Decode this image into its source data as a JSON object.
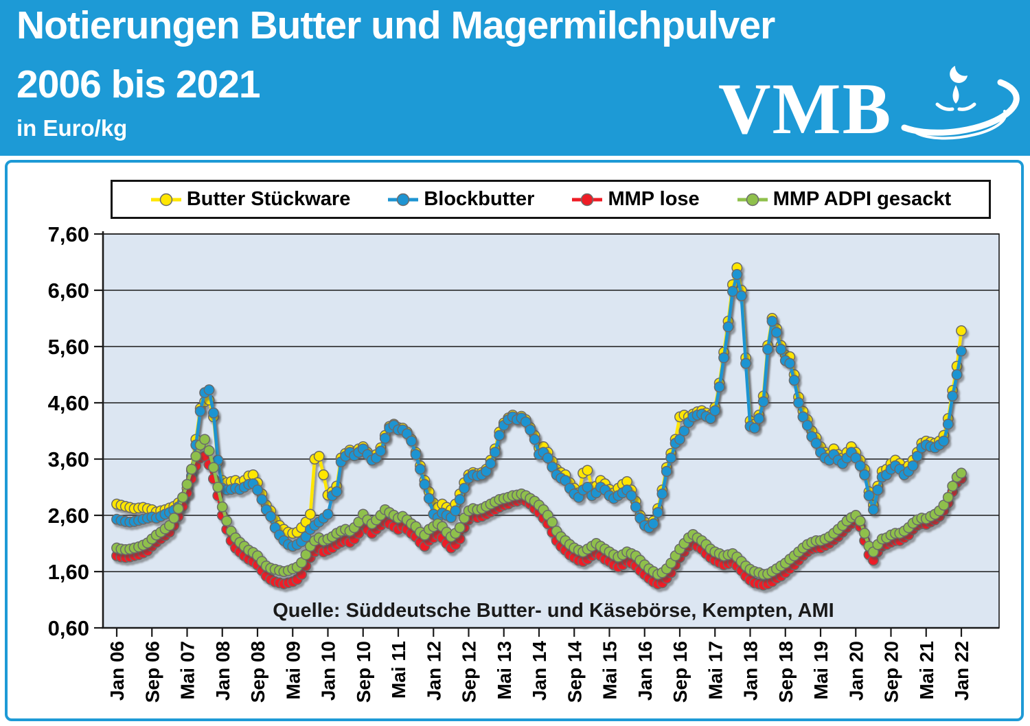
{
  "header": {
    "title_line1": "Notierungen Butter und Magermilchpulver",
    "title_line2": "2006 bis 2021",
    "subtitle": "in Euro/kg",
    "logo_text": "VMB",
    "banner_color": "#1d9ad6"
  },
  "chart_data": {
    "type": "line",
    "title": "Notierungen Butter und Magermilchpulver 2006 bis 2021 in Euro/kg",
    "ylabel": "Euro/kg",
    "ylim": [
      0.6,
      7.6
    ],
    "ytick_step": 1.0,
    "ytick_labels": [
      "7,60",
      "6,60",
      "5,60",
      "4,60",
      "3,60",
      "2,60",
      "1,60",
      "0,60"
    ],
    "x_start": "Jan 2006",
    "x_end": "Jan 2022",
    "x_interval": "monthly",
    "xtick_every_months": 8,
    "xtick_labels": [
      "Jan 06",
      "Sep 06",
      "Mai 07",
      "Jan 08",
      "Sep 08",
      "Mai 09",
      "Jan 10",
      "Sep 10",
      "Mai 11",
      "Jan 12",
      "Sep 12",
      "Mai 13",
      "Jan 14",
      "Sep 14",
      "Mai 15",
      "Jan 16",
      "Sep 16",
      "Mai 17",
      "Jan 18",
      "Sep 18",
      "Mai 19",
      "Jan 20",
      "Sep 20",
      "Mai 21",
      "Jan 22"
    ],
    "grid": true,
    "legend_position": "top",
    "plot_bg": "#dce6f2",
    "axis_color": "#1a1a1a",
    "marker_outline": "#6b6b6b",
    "source_note": "Quelle: Süddeutsche Butter- und Käsebörse, Kempten, AMI",
    "series": [
      {
        "name": "Butter Stückware",
        "color": "#ffe600",
        "values": [
          2.8,
          2.78,
          2.76,
          2.74,
          2.72,
          2.73,
          2.74,
          2.72,
          2.7,
          2.66,
          2.68,
          2.7,
          2.73,
          2.76,
          2.82,
          2.92,
          3.08,
          3.4,
          3.95,
          4.5,
          4.62,
          4.65,
          4.35,
          3.55,
          3.22,
          3.18,
          3.2,
          3.22,
          3.18,
          3.22,
          3.3,
          3.32,
          3.18,
          2.98,
          2.78,
          2.68,
          2.52,
          2.42,
          2.35,
          2.3,
          2.28,
          2.3,
          2.38,
          2.48,
          2.62,
          3.6,
          3.65,
          3.32,
          2.96,
          3.02,
          3.12,
          3.62,
          3.7,
          3.76,
          3.72,
          3.78,
          3.82,
          3.72,
          3.63,
          3.68,
          3.8,
          4.02,
          4.18,
          4.22,
          4.16,
          4.15,
          4.08,
          3.95,
          3.72,
          3.48,
          3.22,
          3.02,
          2.82,
          2.74,
          2.8,
          2.74,
          2.7,
          2.8,
          2.98,
          3.18,
          3.32,
          3.36,
          3.34,
          3.36,
          3.42,
          3.58,
          3.78,
          4.08,
          4.24,
          4.33,
          4.38,
          4.33,
          4.36,
          4.3,
          4.16,
          4.02,
          3.8,
          3.82,
          3.72,
          3.56,
          3.42,
          3.36,
          3.32,
          3.18,
          3.08,
          3.0,
          3.35,
          3.4,
          3.1,
          3.12,
          3.22,
          3.16,
          3.06,
          3.0,
          3.08,
          3.15,
          3.2,
          3.05,
          2.85,
          2.6,
          2.48,
          2.42,
          2.5,
          2.72,
          3.05,
          3.45,
          3.7,
          3.95,
          4.35,
          4.38,
          4.35,
          4.4,
          4.44,
          4.46,
          4.42,
          4.38,
          4.52,
          4.95,
          5.5,
          6.05,
          6.7,
          7.0,
          6.6,
          5.4,
          4.28,
          4.22,
          4.38,
          4.72,
          5.62,
          6.1,
          5.92,
          5.62,
          5.45,
          5.42,
          5.1,
          4.7,
          4.45,
          4.3,
          4.1,
          3.98,
          3.82,
          3.72,
          3.68,
          3.78,
          3.68,
          3.62,
          3.72,
          3.82,
          3.72,
          3.58,
          3.42,
          3.02,
          2.78,
          3.12,
          3.38,
          3.42,
          3.52,
          3.58,
          3.52,
          3.42,
          3.48,
          3.58,
          3.72,
          3.88,
          3.92,
          3.9,
          3.88,
          3.92,
          4.02,
          4.32,
          4.82,
          5.25,
          5.88
        ]
      },
      {
        "name": "Blockbutter",
        "color": "#1e94d2",
        "values": [
          2.53,
          2.51,
          2.49,
          2.48,
          2.49,
          2.51,
          2.53,
          2.55,
          2.57,
          2.55,
          2.58,
          2.62,
          2.65,
          2.69,
          2.75,
          2.85,
          3.0,
          3.3,
          3.85,
          4.45,
          4.78,
          4.83,
          4.42,
          3.58,
          3.08,
          3.05,
          3.06,
          3.08,
          3.06,
          3.1,
          3.15,
          3.16,
          3.05,
          2.88,
          2.7,
          2.58,
          2.38,
          2.25,
          2.15,
          2.08,
          2.05,
          2.08,
          2.13,
          2.22,
          2.35,
          2.42,
          2.48,
          2.55,
          2.62,
          2.95,
          3.02,
          3.55,
          3.65,
          3.72,
          3.66,
          3.72,
          3.78,
          3.68,
          3.58,
          3.62,
          3.74,
          3.97,
          4.15,
          4.2,
          4.12,
          4.12,
          4.05,
          3.92,
          3.68,
          3.42,
          3.15,
          2.9,
          2.62,
          2.56,
          2.64,
          2.6,
          2.56,
          2.68,
          2.88,
          3.08,
          3.26,
          3.32,
          3.3,
          3.32,
          3.38,
          3.52,
          3.72,
          4.02,
          4.2,
          4.3,
          4.35,
          4.3,
          4.33,
          4.26,
          4.12,
          3.95,
          3.68,
          3.72,
          3.62,
          3.46,
          3.32,
          3.26,
          3.22,
          3.08,
          2.98,
          2.92,
          3.05,
          3.1,
          2.95,
          3.0,
          3.1,
          3.05,
          2.95,
          2.9,
          2.95,
          3.0,
          3.05,
          2.95,
          2.75,
          2.55,
          2.42,
          2.38,
          2.45,
          2.65,
          2.98,
          3.38,
          3.62,
          3.88,
          3.95,
          4.1,
          4.25,
          4.35,
          4.38,
          4.4,
          4.36,
          4.32,
          4.46,
          4.88,
          5.4,
          5.95,
          6.58,
          6.88,
          6.5,
          5.3,
          4.18,
          4.15,
          4.32,
          4.62,
          5.55,
          6.05,
          5.85,
          5.55,
          5.35,
          5.3,
          5.0,
          4.6,
          4.35,
          4.2,
          4.0,
          3.88,
          3.72,
          3.62,
          3.58,
          3.68,
          3.58,
          3.52,
          3.62,
          3.72,
          3.62,
          3.48,
          3.32,
          2.95,
          2.7,
          3.05,
          3.28,
          3.32,
          3.42,
          3.48,
          3.42,
          3.32,
          3.38,
          3.48,
          3.65,
          3.8,
          3.85,
          3.82,
          3.8,
          3.85,
          3.92,
          4.22,
          4.72,
          5.1,
          5.52
        ]
      },
      {
        "name": "MMP lose",
        "color": "#ee1c25",
        "values": [
          1.88,
          1.86,
          1.85,
          1.86,
          1.88,
          1.9,
          1.93,
          1.97,
          2.05,
          2.12,
          2.18,
          2.24,
          2.3,
          2.42,
          2.58,
          2.76,
          3.0,
          3.25,
          3.48,
          3.62,
          3.65,
          3.5,
          3.25,
          2.95,
          2.6,
          2.35,
          2.15,
          2.02,
          1.95,
          1.88,
          1.82,
          1.78,
          1.72,
          1.62,
          1.52,
          1.46,
          1.42,
          1.4,
          1.38,
          1.4,
          1.42,
          1.46,
          1.55,
          1.7,
          1.85,
          1.95,
          2.0,
          1.95,
          1.98,
          2.02,
          2.08,
          2.12,
          2.15,
          2.12,
          2.18,
          2.28,
          2.45,
          2.35,
          2.28,
          2.35,
          2.42,
          2.48,
          2.45,
          2.4,
          2.35,
          2.4,
          2.35,
          2.28,
          2.22,
          2.12,
          2.05,
          2.15,
          2.2,
          2.25,
          2.2,
          2.1,
          2.02,
          2.08,
          2.18,
          2.38,
          2.52,
          2.58,
          2.56,
          2.58,
          2.62,
          2.66,
          2.7,
          2.74,
          2.78,
          2.8,
          2.84,
          2.85,
          2.88,
          2.85,
          2.8,
          2.72,
          2.65,
          2.55,
          2.45,
          2.3,
          2.15,
          2.05,
          1.98,
          1.9,
          1.85,
          1.8,
          1.78,
          1.82,
          1.88,
          1.92,
          1.88,
          1.82,
          1.78,
          1.72,
          1.68,
          1.72,
          1.78,
          1.75,
          1.7,
          1.62,
          1.55,
          1.48,
          1.42,
          1.38,
          1.4,
          1.48,
          1.58,
          1.72,
          1.85,
          1.95,
          2.05,
          2.1,
          2.05,
          2.0,
          1.92,
          1.85,
          1.8,
          1.76,
          1.72,
          1.74,
          1.76,
          1.7,
          1.62,
          1.52,
          1.45,
          1.4,
          1.38,
          1.36,
          1.38,
          1.42,
          1.48,
          1.52,
          1.58,
          1.65,
          1.72,
          1.8,
          1.88,
          1.95,
          2.0,
          2.02,
          2.02,
          2.06,
          2.1,
          2.16,
          2.22,
          2.3,
          2.38,
          2.45,
          2.5,
          2.4,
          2.15,
          1.9,
          1.8,
          1.95,
          2.05,
          2.08,
          2.12,
          2.15,
          2.15,
          2.2,
          2.25,
          2.35,
          2.42,
          2.45,
          2.44,
          2.48,
          2.52,
          2.58,
          2.68,
          2.82,
          3.02,
          3.18,
          3.25
        ]
      },
      {
        "name": "MMP ADPI gesackt",
        "color": "#8fc04c",
        "values": [
          2.02,
          2.0,
          1.99,
          2.0,
          2.02,
          2.04,
          2.07,
          2.11,
          2.18,
          2.25,
          2.3,
          2.36,
          2.42,
          2.55,
          2.72,
          2.92,
          3.15,
          3.42,
          3.65,
          3.85,
          3.95,
          3.75,
          3.45,
          3.1,
          2.75,
          2.5,
          2.32,
          2.2,
          2.12,
          2.05,
          1.98,
          1.94,
          1.88,
          1.78,
          1.7,
          1.66,
          1.64,
          1.62,
          1.6,
          1.62,
          1.65,
          1.68,
          1.76,
          1.9,
          2.05,
          2.15,
          2.2,
          2.15,
          2.18,
          2.22,
          2.28,
          2.32,
          2.35,
          2.32,
          2.38,
          2.48,
          2.62,
          2.52,
          2.45,
          2.52,
          2.6,
          2.7,
          2.65,
          2.6,
          2.55,
          2.58,
          2.52,
          2.45,
          2.4,
          2.3,
          2.25,
          2.35,
          2.4,
          2.45,
          2.4,
          2.3,
          2.22,
          2.28,
          2.38,
          2.55,
          2.68,
          2.72,
          2.7,
          2.72,
          2.76,
          2.8,
          2.84,
          2.88,
          2.9,
          2.92,
          2.95,
          2.96,
          2.98,
          2.95,
          2.9,
          2.85,
          2.78,
          2.7,
          2.6,
          2.48,
          2.32,
          2.22,
          2.15,
          2.08,
          2.02,
          1.98,
          1.95,
          2.0,
          2.05,
          2.1,
          2.05,
          2.0,
          1.95,
          1.9,
          1.86,
          1.9,
          1.95,
          1.92,
          1.88,
          1.8,
          1.72,
          1.65,
          1.6,
          1.55,
          1.58,
          1.65,
          1.75,
          1.88,
          2.0,
          2.1,
          2.2,
          2.26,
          2.2,
          2.15,
          2.08,
          2.0,
          1.95,
          1.92,
          1.88,
          1.9,
          1.92,
          1.86,
          1.78,
          1.7,
          1.64,
          1.6,
          1.58,
          1.55,
          1.56,
          1.6,
          1.65,
          1.7,
          1.75,
          1.82,
          1.88,
          1.95,
          2.02,
          2.08,
          2.12,
          2.15,
          2.15,
          2.18,
          2.22,
          2.28,
          2.35,
          2.42,
          2.5,
          2.56,
          2.6,
          2.5,
          2.28,
          2.05,
          1.95,
          2.08,
          2.18,
          2.2,
          2.25,
          2.28,
          2.28,
          2.32,
          2.38,
          2.46,
          2.52,
          2.55,
          2.54,
          2.58,
          2.62,
          2.68,
          2.78,
          2.92,
          3.12,
          3.28,
          3.35
        ]
      }
    ]
  }
}
